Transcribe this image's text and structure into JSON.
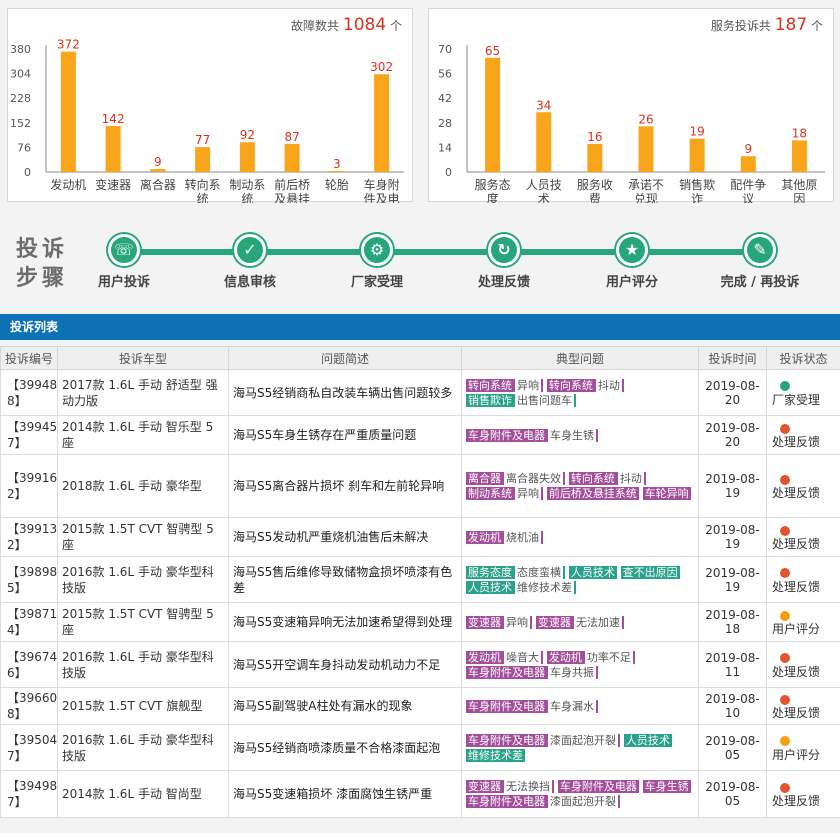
{
  "fault_panel": {
    "prefix": "故障数共",
    "total": "1084",
    "unit": "个"
  },
  "complaint_panel": {
    "prefix": "服务投诉共",
    "total": "187",
    "unit": "个"
  },
  "chart_data": [
    {
      "type": "bar",
      "categories": [
        "发动机",
        "变速器",
        "离合器",
        "转向系统",
        "制动系统",
        "前后桥及悬挂系统",
        "轮胎",
        "车身附件及电器"
      ],
      "category_lines": [
        [
          "发动机"
        ],
        [
          "变速器"
        ],
        [
          "离合器"
        ],
        [
          "转向系",
          "统"
        ],
        [
          "制动系",
          "统"
        ],
        [
          "前后桥",
          "及悬挂",
          "系统"
        ],
        [
          "轮胎"
        ],
        [
          "车身附",
          "件及电",
          "器"
        ]
      ],
      "values": [
        372,
        142,
        9,
        77,
        92,
        87,
        3,
        302
      ],
      "yticks": [
        0,
        76,
        152,
        228,
        304,
        380
      ],
      "ylim": [
        0,
        380
      ],
      "color": "#f9a51b",
      "label_color": "#d8321f"
    },
    {
      "type": "bar",
      "categories": [
        "服务态度",
        "人员技术",
        "服务收费",
        "承诺不兑现",
        "销售欺诈",
        "配件争议",
        "其他原因"
      ],
      "category_lines": [
        [
          "服务态",
          "度"
        ],
        [
          "人员技",
          "术"
        ],
        [
          "服务收",
          "费"
        ],
        [
          "承诺不",
          "兑现"
        ],
        [
          "销售欺",
          "诈"
        ],
        [
          "配件争",
          "议"
        ],
        [
          "其他原",
          "因"
        ]
      ],
      "values": [
        65,
        34,
        16,
        26,
        19,
        9,
        18
      ],
      "yticks": [
        0,
        14,
        28,
        42,
        56,
        70
      ],
      "ylim": [
        0,
        70
      ],
      "color": "#f9a51b",
      "label_color": "#d8321f"
    }
  ],
  "steps": {
    "title_line1": "投诉",
    "title_line2": "步骤",
    "items": [
      {
        "label": "用户投诉",
        "icon": "phone-icon",
        "glyph": "☏"
      },
      {
        "label": "信息审核",
        "icon": "check-icon",
        "glyph": "✓"
      },
      {
        "label": "厂家受理",
        "icon": "gear-icon",
        "glyph": "⚙"
      },
      {
        "label": "处理反馈",
        "icon": "refresh-icon",
        "glyph": "↻"
      },
      {
        "label": "用户评分",
        "icon": "star-icon",
        "glyph": "★"
      },
      {
        "label": "完成 / 再投诉",
        "icon": "pen-icon",
        "glyph": "✎"
      }
    ]
  },
  "list": {
    "title": "投诉列表",
    "headers": [
      "投诉编号",
      "投诉车型",
      "问题简述",
      "典型问题",
      "投诉时间",
      "投诉状态"
    ],
    "rows": [
      {
        "id": "【39948 8】",
        "model": "2017款 1.6L 手动 舒适型 强动力版",
        "desc": "海马S5经销商私自改装车辆出售问题较多",
        "tags": [
          [
            "转向系统",
            "异响",
            "purple"
          ],
          [
            "转向系统",
            "抖动",
            "purple"
          ],
          [
            "销售欺诈",
            "出售问题车",
            "teal"
          ]
        ],
        "time": "2019-08-20",
        "status": "厂家受理",
        "status_color": "teal"
      },
      {
        "id": "【39945 7】",
        "model": "2014款 1.6L 手动 智乐型 5座",
        "desc": "海马S5车身生锈存在严重质量问题",
        "tags": [
          [
            "车身附件及电器",
            "车身生锈",
            "purple"
          ]
        ],
        "time": "2019-08-20",
        "status": "处理反馈",
        "status_color": "red"
      },
      {
        "id": "【39916 2】",
        "model": "2018款 1.6L 手动 豪华型",
        "desc": "海马S5离合器片损坏 刹车和左前轮异响",
        "tags": [
          [
            "离合器",
            "离合器失效",
            "purple"
          ],
          [
            "转向系统",
            "抖动",
            "purple"
          ],
          [
            "制动系统",
            "异响",
            "purple"
          ],
          [
            "前后桥及悬挂系统",
            "",
            "purple"
          ],
          [
            "车轮异响",
            "",
            "purple"
          ]
        ],
        "time": "2019-08-19",
        "status": "处理反馈",
        "status_color": "red"
      },
      {
        "id": "【39913 2】",
        "model": "2015款 1.5T CVT 智骋型 5座",
        "desc": "海马S5发动机严重烧机油售后未解决",
        "tags": [
          [
            "发动机",
            "烧机油",
            "purple"
          ]
        ],
        "time": "2019-08-19",
        "status": "处理反馈",
        "status_color": "red"
      },
      {
        "id": "【39898 5】",
        "model": "2016款 1.6L 手动 豪华型科技版",
        "desc": "海马S5售后维修导致储物盒损坏喷漆有色差",
        "tags": [
          [
            "服务态度",
            "态度蛮横",
            "teal"
          ],
          [
            "人员技术",
            "",
            "teal"
          ],
          [
            "查不出原因",
            "",
            "teal"
          ],
          [
            "人员技术",
            "维修技术差",
            "teal"
          ]
        ],
        "time": "2019-08-19",
        "status": "处理反馈",
        "status_color": "red"
      },
      {
        "id": "【39871 4】",
        "model": "2015款 1.5T CVT 智骋型 5座",
        "desc": "海马S5变速箱异响无法加速希望得到处理",
        "tags": [
          [
            "变速器",
            "异响",
            "purple"
          ],
          [
            "变速器",
            "无法加速",
            "purple"
          ]
        ],
        "time": "2019-08-18",
        "status": "用户评分",
        "status_color": "orange"
      },
      {
        "id": "【39674 6】",
        "model": "2016款 1.6L 手动 豪华型科技版",
        "desc": "海马S5开空调车身抖动发动机动力不足",
        "tags": [
          [
            "发动机",
            "噪音大",
            "purple"
          ],
          [
            "发动机",
            "功率不足",
            "purple"
          ],
          [
            "车身附件及电器",
            "车身共振",
            "purple"
          ]
        ],
        "time": "2019-08-11",
        "status": "处理反馈",
        "status_color": "red"
      },
      {
        "id": "【39660 8】",
        "model": "2015款 1.5T CVT 旗舰型",
        "desc": "海马S5副驾驶A柱处有漏水的现象",
        "tags": [
          [
            "车身附件及电器",
            "车身漏水",
            "purple"
          ]
        ],
        "time": "2019-08-10",
        "status": "处理反馈",
        "status_color": "red"
      },
      {
        "id": "【39504 7】",
        "model": "2016款 1.6L 手动 豪华型科技版",
        "desc": "海马S5经销商喷漆质量不合格漆面起泡",
        "tags": [
          [
            "车身附件及电器",
            "漆面起泡开裂",
            "purple"
          ],
          [
            "人员技术",
            "",
            "teal"
          ],
          [
            "维修技术差",
            "",
            "teal"
          ]
        ],
        "time": "2019-08-05",
        "status": "用户评分",
        "status_color": "orange"
      },
      {
        "id": "【39498 7】",
        "model": "2014款 1.6L 手动 智尚型",
        "desc": "海马S5变速箱损坏 漆面腐蚀生锈严重",
        "tags": [
          [
            "变速器",
            "无法换挡",
            "purple"
          ],
          [
            "车身附件及电器",
            "",
            "purple"
          ],
          [
            "车身生锈",
            "",
            "purple"
          ],
          [
            "车身附件及电器",
            "漆面起泡开裂",
            "purple"
          ]
        ],
        "time": "2019-08-05",
        "status": "处理反馈",
        "status_color": "red"
      }
    ]
  }
}
